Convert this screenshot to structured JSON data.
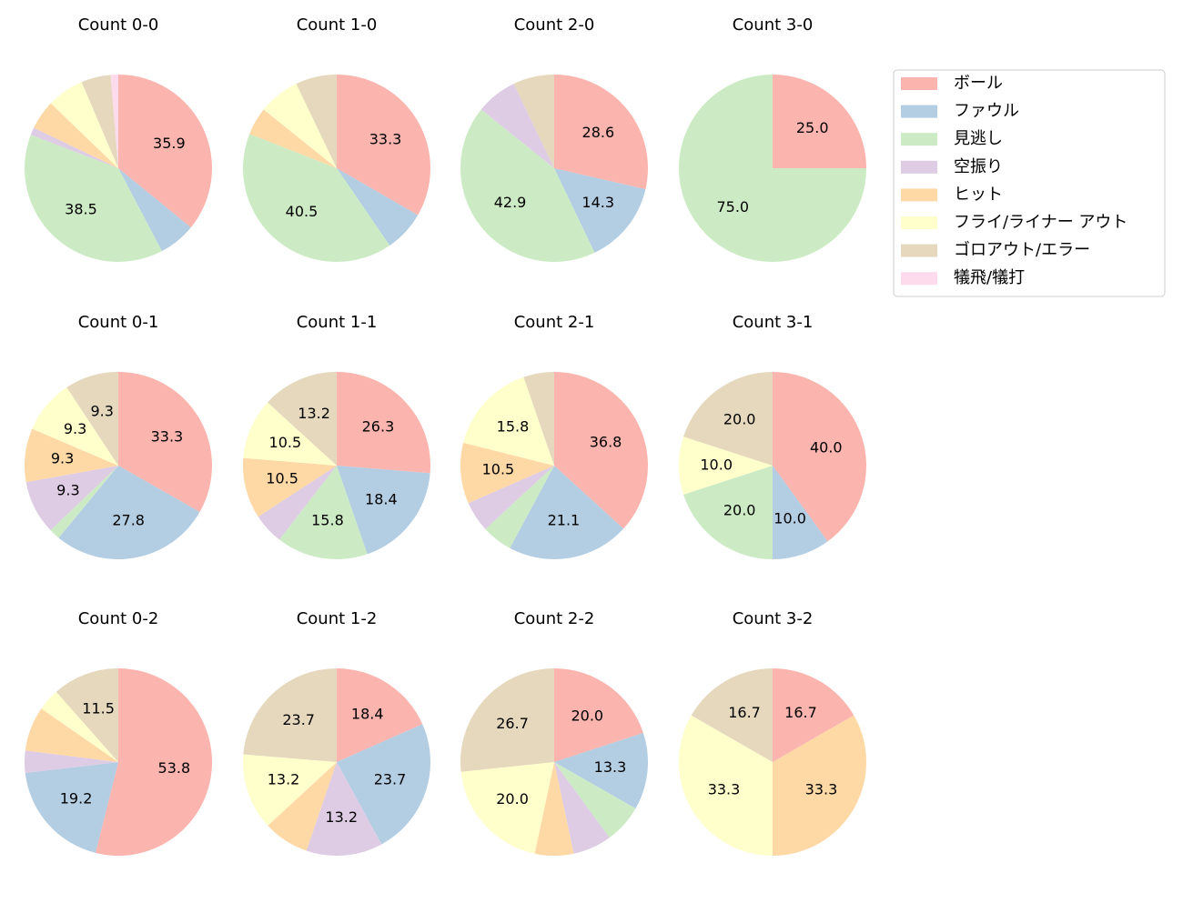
{
  "legend": {
    "labels": [
      "ボール",
      "ファウル",
      "見逃し",
      "空振り",
      "ヒット",
      "フライ/ライナー アウト",
      "ゴロアウト/エラー",
      "犠飛/犠打"
    ],
    "colors": [
      "#fbb4ae",
      "#b3cde3",
      "#ccebc5",
      "#decbe4",
      "#fed9a6",
      "#ffffcc",
      "#e5d8bd",
      "#fddaec"
    ]
  },
  "chart_data": [
    {
      "type": "pie",
      "title": "Count 0-0",
      "values": [
        35.9,
        6.4,
        38.5,
        1.3,
        5.1,
        6.4,
        5.1,
        1.3
      ],
      "value_labels": [
        "35.9",
        null,
        "38.5",
        null,
        null,
        null,
        null,
        null
      ]
    },
    {
      "type": "pie",
      "title": "Count 1-0",
      "values": [
        33.3,
        7.1,
        40.5,
        0,
        4.8,
        7.1,
        7.1,
        0
      ],
      "value_labels": [
        "33.3",
        null,
        "40.5",
        null,
        null,
        null,
        null,
        null
      ]
    },
    {
      "type": "pie",
      "title": "Count 2-0",
      "values": [
        28.6,
        14.3,
        42.9,
        7.1,
        0,
        0,
        7.1,
        0
      ],
      "value_labels": [
        "28.6",
        "14.3",
        "42.9",
        null,
        null,
        null,
        null,
        null
      ]
    },
    {
      "type": "pie",
      "title": "Count 3-0",
      "values": [
        25.0,
        0,
        75.0,
        0,
        0,
        0,
        0,
        0
      ],
      "value_labels": [
        "25.0",
        null,
        "75.0",
        null,
        null,
        null,
        null,
        null
      ]
    },
    {
      "type": "pie",
      "title": "Count 0-1",
      "values": [
        33.3,
        27.8,
        1.9,
        9.3,
        9.3,
        9.3,
        9.3,
        0
      ],
      "value_labels": [
        "33.3",
        "27.8",
        null,
        "9.3",
        "9.3",
        "9.3",
        "9.3",
        null
      ]
    },
    {
      "type": "pie",
      "title": "Count 1-1",
      "values": [
        26.3,
        18.4,
        15.8,
        5.3,
        10.5,
        10.5,
        13.2,
        0
      ],
      "value_labels": [
        "26.3",
        "18.4",
        "15.8",
        null,
        "10.5",
        "10.5",
        "13.2",
        null
      ]
    },
    {
      "type": "pie",
      "title": "Count 2-1",
      "values": [
        36.8,
        21.1,
        5.3,
        5.3,
        10.5,
        15.8,
        5.3,
        0
      ],
      "value_labels": [
        "36.8",
        "21.1",
        null,
        null,
        "10.5",
        "15.8",
        null,
        null
      ]
    },
    {
      "type": "pie",
      "title": "Count 3-1",
      "values": [
        40.0,
        10.0,
        20.0,
        0,
        0,
        10.0,
        20.0,
        0
      ],
      "value_labels": [
        "40.0",
        "10.0",
        "20.0",
        null,
        null,
        "10.0",
        "20.0",
        null
      ]
    },
    {
      "type": "pie",
      "title": "Count 0-2",
      "values": [
        53.8,
        19.2,
        0,
        3.8,
        7.7,
        3.8,
        11.5,
        0
      ],
      "value_labels": [
        "53.8",
        "19.2",
        null,
        null,
        null,
        null,
        "11.5",
        null
      ]
    },
    {
      "type": "pie",
      "title": "Count 1-2",
      "values": [
        18.4,
        23.7,
        0,
        13.2,
        7.9,
        13.2,
        23.7,
        0
      ],
      "value_labels": [
        "18.4",
        "23.7",
        null,
        "13.2",
        null,
        "13.2",
        "23.7",
        null
      ]
    },
    {
      "type": "pie",
      "title": "Count 2-2",
      "values": [
        20.0,
        13.3,
        6.7,
        6.7,
        6.7,
        20.0,
        26.7,
        0
      ],
      "value_labels": [
        "20.0",
        "13.3",
        null,
        null,
        null,
        "20.0",
        "26.7",
        null
      ]
    },
    {
      "type": "pie",
      "title": "Count 3-2",
      "values": [
        16.7,
        0,
        0,
        0,
        33.3,
        33.3,
        16.7,
        0
      ],
      "value_labels": [
        "16.7",
        null,
        null,
        null,
        "33.3",
        "33.3",
        "16.7",
        null
      ]
    }
  ]
}
